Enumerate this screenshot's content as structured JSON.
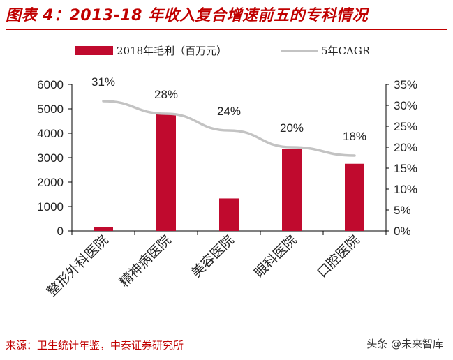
{
  "header": {
    "title": "图表 4：2013-18 年收入复合增速前五的专科情况"
  },
  "footer": {
    "source": "来源：卫生统计年鉴，中泰证券研究所",
    "watermark": "头条 @未来智库"
  },
  "colors": {
    "accent": "#c00000",
    "bar": "#c00a2e",
    "line": "#c3c3c3"
  },
  "chart_data": {
    "type": "bar",
    "title": "",
    "categories": [
      "整形外科医院",
      "精神病医院",
      "美容医院",
      "眼科医院",
      "口腔医院"
    ],
    "series": [
      {
        "name": "2018年毛利（百万元）",
        "type": "bar",
        "axis": "left",
        "values": [
          160,
          4780,
          1330,
          3350,
          2750
        ]
      },
      {
        "name": "5年CAGR",
        "type": "line",
        "axis": "right",
        "values": [
          31,
          28,
          24,
          20,
          18
        ],
        "labels": [
          "31%",
          "28%",
          "24%",
          "20%",
          "18%"
        ]
      }
    ],
    "y_left": {
      "ylim": [
        0,
        6000
      ],
      "ticks": [
        0,
        1000,
        2000,
        3000,
        4000,
        5000,
        6000
      ],
      "tick_labels": [
        "0",
        "1000",
        "2000",
        "3000",
        "4000",
        "5000",
        "6000"
      ]
    },
    "y_right": {
      "ylim": [
        0,
        35
      ],
      "ticks": [
        0,
        5,
        10,
        15,
        20,
        25,
        30,
        35
      ],
      "tick_labels": [
        "0%",
        "5%",
        "10%",
        "15%",
        "20%",
        "25%",
        "30%",
        "35%"
      ]
    },
    "legend": [
      "2018年毛利（百万元）",
      "5年CAGR"
    ],
    "legend_position": "top-center",
    "grid": false
  }
}
